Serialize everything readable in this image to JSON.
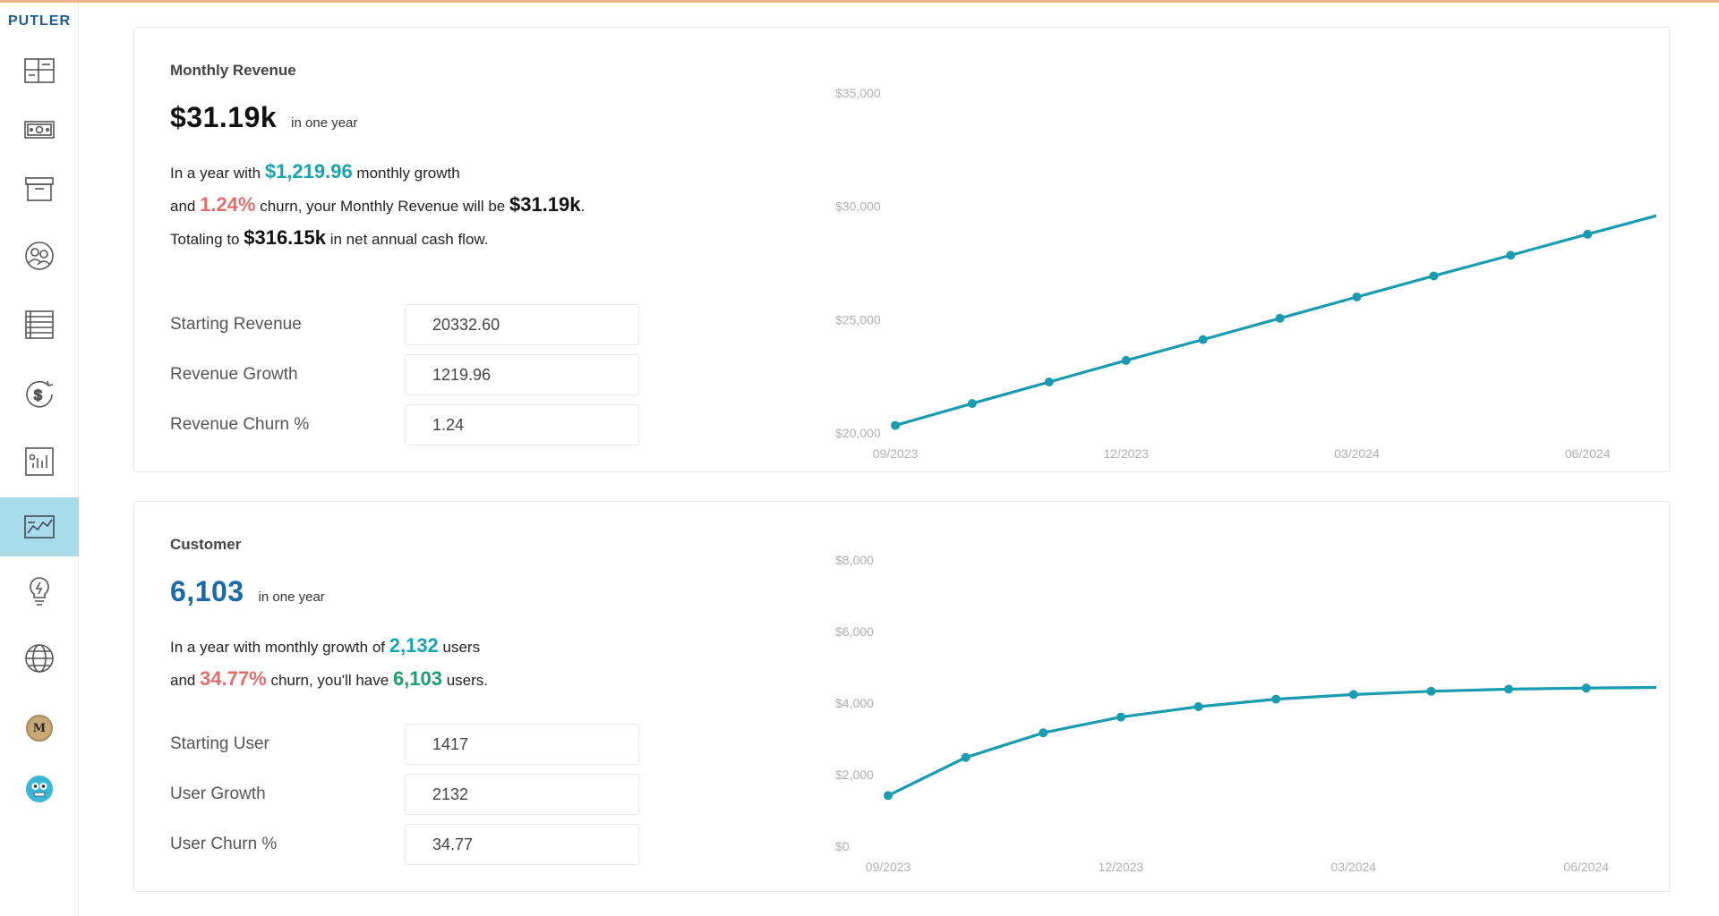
{
  "app": {
    "logo": "PUTLER"
  },
  "sidebar": {
    "items": [
      {
        "icon": "dashboard-icon"
      },
      {
        "icon": "money-icon"
      },
      {
        "icon": "archive-box-icon"
      },
      {
        "icon": "customers-icon"
      },
      {
        "icon": "list-icon"
      },
      {
        "icon": "subscription-dollar-icon"
      },
      {
        "icon": "reports-icon"
      },
      {
        "icon": "forecast-chart-icon",
        "active": true
      },
      {
        "icon": "insights-bulb-icon"
      },
      {
        "icon": "globe-icon"
      }
    ],
    "avatar_initial": "M"
  },
  "revenue": {
    "title": "Monthly Revenue",
    "big_value": "$31.19k",
    "big_suffix": "in one year",
    "line1_a": "In a year with ",
    "line1_growth": "$1,219.96",
    "line1_b": " monthly growth",
    "line2_a": "and ",
    "line2_churn": "1.24%",
    "line2_b": " churn, your Monthly Revenue will be ",
    "line2_value": "$31.19k",
    "line2_c": ".",
    "line3_a": "Totaling to ",
    "line3_value": "$316.15k",
    "line3_b": " in net annual cash flow.",
    "fields": [
      {
        "label": "Starting Revenue",
        "value": "20332.60"
      },
      {
        "label": "Revenue Growth",
        "value": "1219.96"
      },
      {
        "label": "Revenue Churn %",
        "value": "1.24"
      }
    ]
  },
  "customer": {
    "title": "Customer",
    "big_value": "6,103",
    "big_suffix": "in one year",
    "line1_a": "In a year with monthly growth of ",
    "line1_growth": "2,132",
    "line1_b": " users",
    "line2_a": "and ",
    "line2_churn": "34.77%",
    "line2_b": " churn, you'll have ",
    "line2_value": "6,103",
    "line2_c": " users.",
    "fields": [
      {
        "label": "Starting User",
        "value": "1417"
      },
      {
        "label": "User Growth",
        "value": "2132"
      },
      {
        "label": "User Churn %",
        "value": "34.77"
      }
    ]
  },
  "chart_data": [
    {
      "type": "line",
      "color": "#1a9bb0",
      "ylim": [
        20000,
        35000
      ],
      "yticks": [
        "$20,000",
        "$25,000",
        "$30,000",
        "$35,000"
      ],
      "ytick_values": [
        20000,
        25000,
        30000,
        35000
      ],
      "xticks": [
        "09/2023",
        "12/2023",
        "03/2024",
        "06/2024"
      ],
      "xtick_index": [
        0,
        3,
        6,
        9
      ],
      "values": [
        20332.6,
        21300,
        22250,
        23200,
        24120,
        25060,
        26000,
        26930,
        27840,
        28770,
        29680,
        30650
      ]
    },
    {
      "type": "line",
      "color": "#1a9bb0",
      "ylim": [
        0,
        8000
      ],
      "yticks": [
        "$0",
        "$2,000",
        "$4,000",
        "$6,000",
        "$8,000"
      ],
      "ytick_values": [
        0,
        2000,
        4000,
        6000,
        8000
      ],
      "xticks": [
        "09/2023",
        "12/2023",
        "03/2024",
        "06/2024"
      ],
      "xtick_index": [
        0,
        3,
        6,
        9
      ],
      "values": [
        1417,
        2480,
        3170,
        3610,
        3900,
        4110,
        4240,
        4330,
        4390,
        4420,
        4440,
        4460
      ]
    }
  ]
}
